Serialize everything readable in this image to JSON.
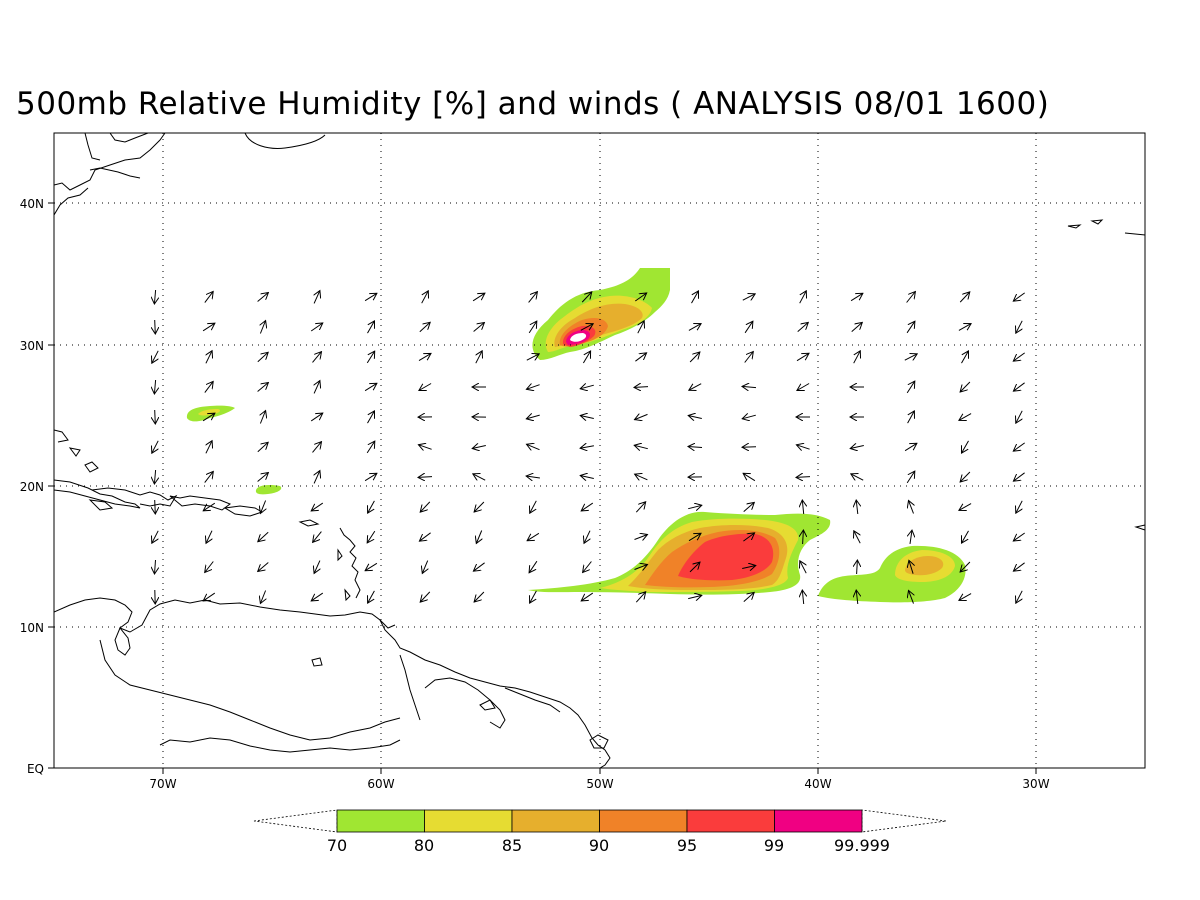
{
  "title": "500mb Relative Humidity [%] and winds ( ANALYSIS 08/01 1600)",
  "map": {
    "lon_range": [
      -75,
      -25
    ],
    "lat_range": [
      0,
      45
    ],
    "lon_ticks": [
      {
        "lon": -70,
        "label": "70W"
      },
      {
        "lon": -60,
        "label": "60W"
      },
      {
        "lon": -50,
        "label": "50W"
      },
      {
        "lon": -40,
        "label": "40W"
      },
      {
        "lon": -30,
        "label": "30W"
      }
    ],
    "lat_ticks": [
      {
        "lat": 40,
        "label": "40N"
      },
      {
        "lat": 30,
        "label": "30N"
      },
      {
        "lat": 20,
        "label": "20N"
      },
      {
        "lat": 10,
        "label": "10N"
      },
      {
        "lat": 0,
        "label": "EQ"
      }
    ],
    "gridlines": "dotted"
  },
  "colorbar": {
    "levels": [
      "70",
      "80",
      "85",
      "90",
      "95",
      "99",
      "99.999"
    ],
    "colors": [
      "#a0e632",
      "#e6dc32",
      "#e6af2d",
      "#f08228",
      "#fa3c3c",
      "#f00082"
    ],
    "extends": "both"
  },
  "humidity_regions": [
    {
      "name": "region-north-50w",
      "lon": -50,
      "lat": 32,
      "peak": 99.999
    },
    {
      "name": "region-central-44w",
      "lon": -44,
      "lat": 15,
      "peak": 95
    },
    {
      "name": "region-east-35w",
      "lon": -35,
      "lat": 14,
      "peak": 85
    },
    {
      "name": "region-west-67w",
      "lon": -67,
      "lat": 25,
      "peak": 80
    },
    {
      "name": "region-west-65w",
      "lon": -65,
      "lat": 20,
      "peak": 70
    }
  ]
}
